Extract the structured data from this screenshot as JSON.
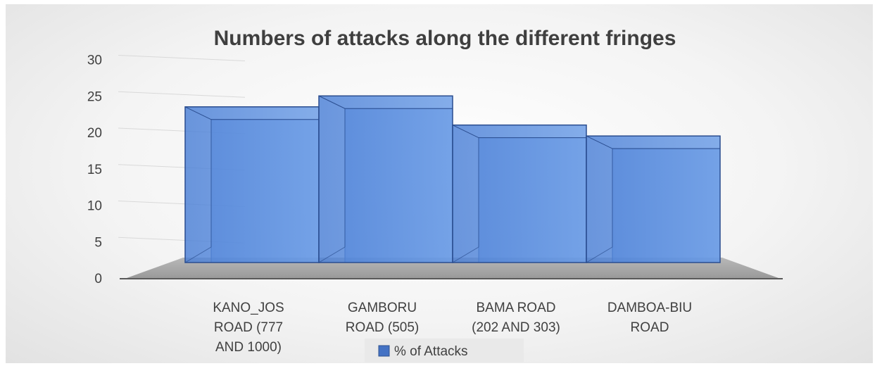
{
  "chart_data": {
    "type": "bar",
    "title": "Numbers of attacks along the different fringes",
    "categories": [
      [
        "KANO_JOS",
        "ROAD (777",
        "AND 1000)"
      ],
      [
        "GAMBORU",
        "ROAD (505)"
      ],
      [
        "BAMA ROAD",
        "(202 AND 303)"
      ],
      [
        "DAMBOA-BIU",
        "ROAD"
      ]
    ],
    "series": [
      {
        "name": "% of Attacks",
        "values": [
          23.5,
          25,
          21,
          19.5
        ]
      }
    ],
    "yticks": [
      0,
      5,
      10,
      15,
      20,
      25,
      30
    ],
    "ylim": [
      0,
      30
    ],
    "legend_position": "bottom",
    "bar_color": "#4472c4",
    "gridlines": true
  }
}
